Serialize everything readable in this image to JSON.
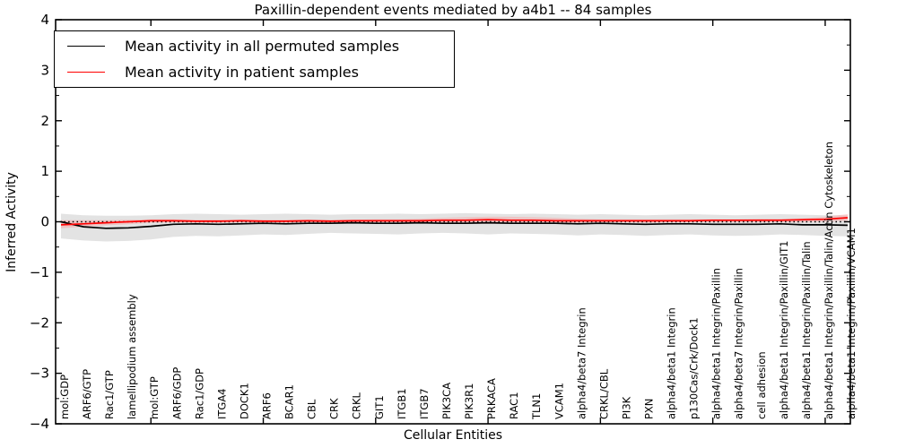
{
  "title": "Paxillin-dependent events mediated by a4b1 -- 84 samples",
  "axes": {
    "ylabel": "Inferred Activity",
    "xlabel": "Cellular Entities",
    "ytick_labels": [
      "4",
      "3",
      "2",
      "1",
      "0",
      "−1",
      "−2",
      "−3",
      "−4"
    ],
    "ytick_values": [
      4,
      3,
      2,
      1,
      0,
      -1,
      -2,
      -3,
      -4
    ]
  },
  "legend": {
    "position": "upper left",
    "items": [
      {
        "label": "Mean activity in all permuted samples",
        "color": "#000000"
      },
      {
        "label": "Mean activity in patient samples",
        "color": "#ff0000"
      }
    ]
  },
  "chart_data": {
    "type": "line",
    "title": "Paxillin-dependent events mediated by a4b1 -- 84 samples",
    "xlabel": "Cellular Entities",
    "ylabel": "Inferred Activity",
    "ylim": [
      -4,
      4
    ],
    "grid": false,
    "zero_line": "black dotted at y=0",
    "xticks": [
      5,
      10,
      15,
      20,
      25,
      30,
      35
    ],
    "yticks_minor_step": 0.5,
    "categories": [
      "mol:GDP",
      "ARF6/GTP",
      "Rac1/GTP",
      "lamellipodium assembly",
      "mol:GTP",
      "ARF6/GDP",
      "Rac1/GDP",
      "ITGA4",
      "DOCK1",
      "ARF6",
      "BCAR1",
      "CBL",
      "CRK",
      "CRKL",
      "GIT1",
      "ITGB1",
      "ITGB7",
      "PIK3CA",
      "PIK3R1",
      "PRKACA",
      "RAC1",
      "TLN1",
      "VCAM1",
      "alpha4/beta7 Integrin",
      "CRKL/CBL",
      "PI3K",
      "PXN",
      "alpha4/beta1 Integrin",
      "p130Cas/Crk/Dock1",
      "alpha4/beta1 Integrin/Paxillin",
      "alpha4/beta7 Integrin/Paxillin",
      "cell adhesion",
      "alpha4/beta1 Integrin/Paxillin/GIT1",
      "alpha4/beta1 Integrin/Paxillin/Talin",
      "alpha4/beta1 Integrin/Paxillin/Talin/Actin Cytoskeleton",
      "alpha4/beta1 Integrin/Paxillin/VCAM1"
    ],
    "series": [
      {
        "name": "Mean activity in all permuted samples",
        "color": "#000000",
        "values": [
          0.0,
          -0.1,
          -0.13,
          -0.12,
          -0.09,
          -0.05,
          -0.04,
          -0.05,
          -0.04,
          -0.03,
          -0.04,
          -0.03,
          -0.03,
          -0.02,
          -0.03,
          -0.03,
          -0.02,
          -0.03,
          -0.03,
          -0.02,
          -0.03,
          -0.03,
          -0.03,
          -0.04,
          -0.03,
          -0.04,
          -0.05,
          -0.04,
          -0.04,
          -0.05,
          -0.05,
          -0.05,
          -0.04,
          -0.06,
          -0.06,
          -0.07
        ],
        "band_upper": [
          0.16,
          0.13,
          0.12,
          0.12,
          0.13,
          0.15,
          0.16,
          0.15,
          0.14,
          0.15,
          0.16,
          0.15,
          0.14,
          0.15,
          0.15,
          0.16,
          0.15,
          0.16,
          0.17,
          0.16,
          0.15,
          0.16,
          0.15,
          0.14,
          0.15,
          0.14,
          0.13,
          0.14,
          0.15,
          0.14,
          0.13,
          0.14,
          0.15,
          0.14,
          0.13,
          0.13
        ],
        "band_lower": [
          -0.33,
          -0.37,
          -0.39,
          -0.38,
          -0.35,
          -0.3,
          -0.28,
          -0.29,
          -0.27,
          -0.25,
          -0.26,
          -0.24,
          -0.22,
          -0.23,
          -0.24,
          -0.25,
          -0.23,
          -0.22,
          -0.23,
          -0.25,
          -0.23,
          -0.24,
          -0.25,
          -0.27,
          -0.25,
          -0.26,
          -0.28,
          -0.26,
          -0.25,
          -0.27,
          -0.28,
          -0.27,
          -0.25,
          -0.26,
          -0.28,
          -0.29
        ],
        "band_color": "#d9d9d9",
        "band_opacity": 0.75
      },
      {
        "name": "Mean activity in patient samples",
        "color": "#ff0000",
        "values": [
          -0.06,
          -0.04,
          -0.02,
          0.0,
          0.02,
          0.02,
          0.01,
          0.01,
          0.02,
          0.01,
          0.01,
          0.02,
          0.01,
          0.02,
          0.02,
          0.02,
          0.02,
          0.03,
          0.03,
          0.04,
          0.03,
          0.03,
          0.02,
          0.02,
          0.02,
          0.02,
          0.02,
          0.02,
          0.02,
          0.03,
          0.03,
          0.03,
          0.03,
          0.04,
          0.05,
          0.08
        ],
        "band_upper": [
          0.03,
          0.03,
          0.03,
          0.04,
          0.05,
          0.05,
          0.04,
          0.04,
          0.04,
          0.04,
          0.04,
          0.04,
          0.04,
          0.04,
          0.05,
          0.05,
          0.06,
          0.08,
          0.09,
          0.1,
          0.1,
          0.09,
          0.08,
          0.06,
          0.05,
          0.05,
          0.05,
          0.05,
          0.05,
          0.05,
          0.05,
          0.06,
          0.06,
          0.07,
          0.1,
          0.15
        ],
        "band_lower": [
          -0.13,
          -0.1,
          -0.07,
          -0.05,
          -0.02,
          -0.01,
          -0.02,
          -0.02,
          -0.01,
          -0.02,
          -0.02,
          -0.01,
          -0.02,
          -0.01,
          -0.01,
          -0.01,
          -0.02,
          -0.03,
          -0.04,
          -0.04,
          -0.04,
          -0.03,
          -0.03,
          -0.02,
          -0.01,
          -0.01,
          -0.02,
          -0.01,
          -0.01,
          -0.01,
          -0.01,
          -0.01,
          -0.01,
          -0.01,
          0.0,
          0.02
        ],
        "band_color": "#ff8888",
        "band_opacity": 0.35
      }
    ]
  }
}
